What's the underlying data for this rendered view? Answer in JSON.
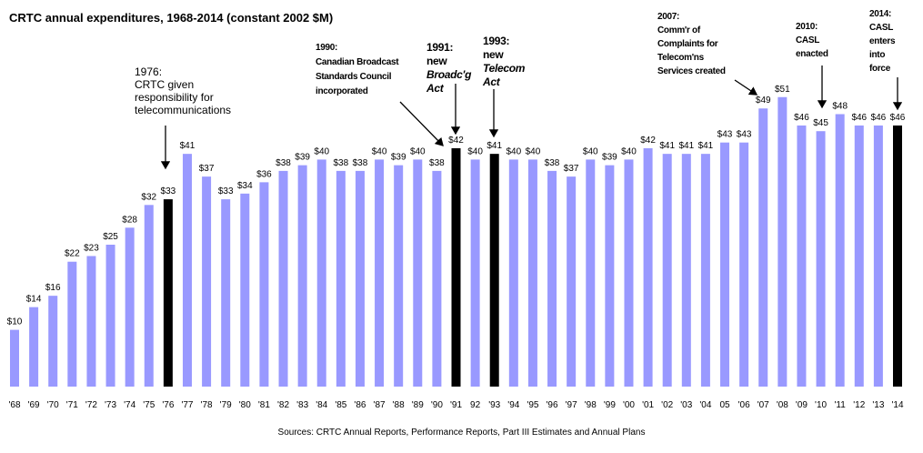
{
  "chart_data": {
    "type": "bar",
    "title": "CRTC annual expenditures, 1968-2014 (constant 2002 $M)",
    "xlabel": "",
    "ylabel": "",
    "ylim": [
      0,
      52
    ],
    "grid": false,
    "categories": [
      "'68",
      "'69",
      "'70",
      "'71",
      "'72",
      "'73",
      "'74",
      "'75",
      "'76",
      "'77",
      "'78",
      "'79",
      "'80",
      "'81",
      "'82",
      "'83",
      "'84",
      "'85",
      "'86",
      "'87",
      "'88",
      "'89",
      "'90",
      "'91",
      "92",
      "'93",
      "'94",
      "'95",
      "'96",
      "'97",
      "'98",
      "'99",
      "'00",
      "'01",
      "'02",
      "'03",
      "'04",
      "05",
      "'06",
      "'07",
      "'08",
      "'09",
      "'10",
      "'11",
      "'12",
      "'13",
      "'14"
    ],
    "values": [
      10,
      14,
      16,
      22,
      23,
      25,
      28,
      32,
      33,
      41,
      37,
      33,
      34,
      36,
      38,
      39,
      40,
      38,
      38,
      40,
      39,
      40,
      38,
      42,
      40,
      41,
      40,
      40,
      38,
      37,
      40,
      39,
      40,
      42,
      41,
      41,
      41,
      43,
      43,
      49,
      51,
      46,
      45,
      48,
      46,
      46,
      46
    ],
    "highlighted": [
      "'76",
      "'91",
      "'93",
      "'14"
    ],
    "value_prefix": "$",
    "colors": {
      "bar": "#9999FF",
      "highlight": "#000000"
    }
  },
  "annotations": {
    "a1976": [
      "1976:",
      "CRTC given",
      "responsibility for",
      "telecommunications"
    ],
    "a1990": [
      "1990:",
      "Canadian Broadcast",
      "Standards Council",
      "incorporated"
    ],
    "a1991": [
      "1991:",
      "new",
      "Broadc'g",
      "Act"
    ],
    "a1993": [
      "1993:",
      "new",
      "Telecom",
      "Act"
    ],
    "a2007": [
      "2007:",
      "Comm'r of",
      "Complaints for",
      "Telecom'ns",
      "Services created"
    ],
    "a2010": [
      "2010:",
      "CASL",
      "enacted"
    ],
    "a2014": [
      "2014:",
      "CASL",
      "enters",
      "into",
      "force"
    ]
  },
  "source": "Sources:  CRTC Annual Reports, Performance Reports, Part III Estimates and Annual Plans"
}
